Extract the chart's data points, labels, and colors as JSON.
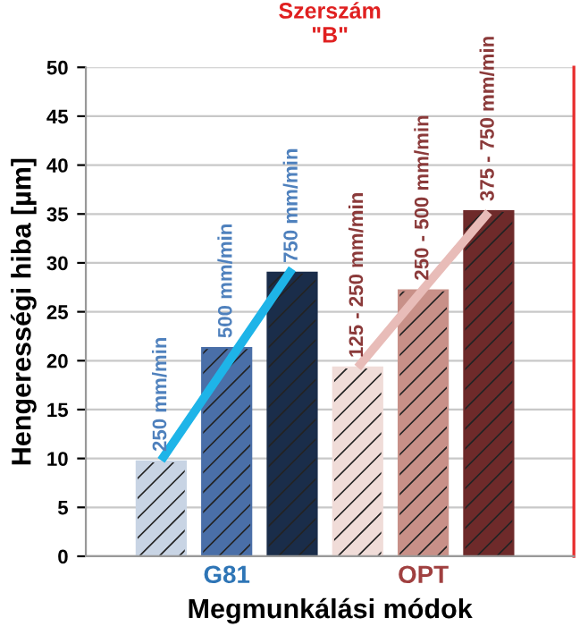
{
  "chart_data": {
    "type": "bar",
    "title": "Szerszám\n\"B\"",
    "xlabel": "Megmunkálási módok",
    "ylabel": "Hengerességi hiba [µm]",
    "categories": [
      null,
      "G81",
      null,
      null,
      "OPT",
      null
    ],
    "series": [
      {
        "colors": [
          "#c8d4e4",
          "#4a6fa8",
          "#1a2d4a",
          "#f0dcd8",
          "#c89088",
          "#6e2a2a"
        ],
        "values": [
          9.7,
          21.3,
          29,
          19.3,
          27.2,
          35.3
        ]
      },
      {
        "type": "line",
        "color": "#1eb4e8",
        "values": [
          9.8,
          19.6,
          29.4,
          null,
          null,
          null
        ]
      },
      {
        "type": "line",
        "color": "#e8bcb8",
        "values": [
          null,
          null,
          null,
          19.3,
          27.3,
          35.2
        ]
      }
    ],
    "annotations": [
      "250 mm/min",
      "500 mm/min",
      "750 mm/min",
      "125 - 250 mm/min",
      "250 - 500 mm/min",
      "375 - 750 mm/min"
    ],
    "ylim": [
      0,
      50
    ],
    "yticks": [
      0,
      5,
      10,
      15,
      20,
      25,
      30,
      35,
      40,
      45,
      50
    ],
    "grid": "y"
  }
}
